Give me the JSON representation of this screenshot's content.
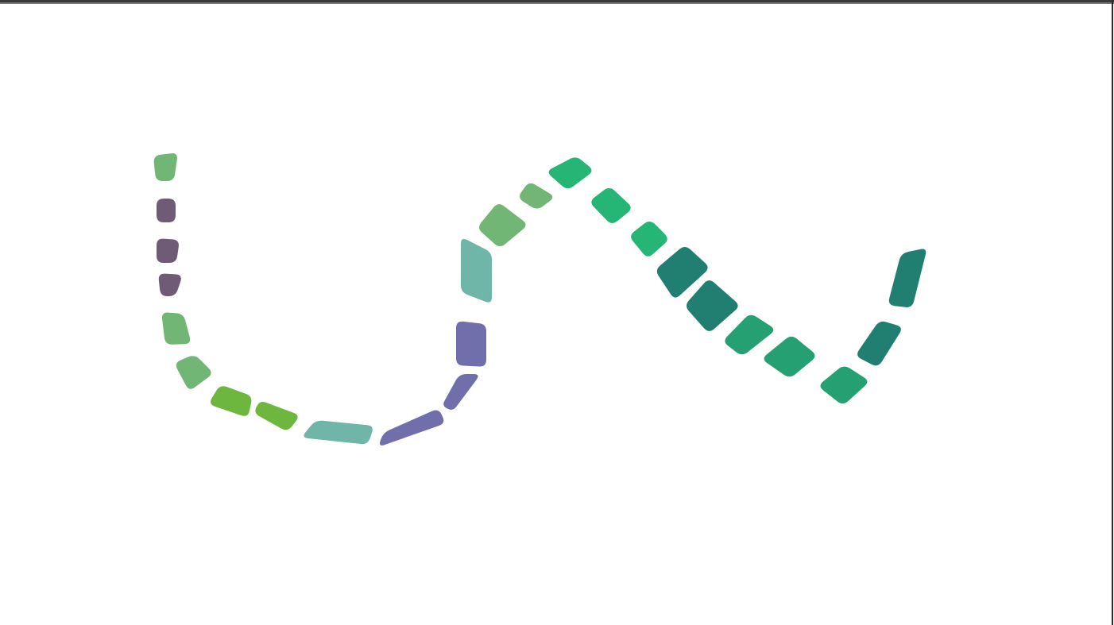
{
  "artwork": {
    "colors": {
      "sage": "#71b674",
      "plum": "#705b76",
      "lime": "#6eb73f",
      "teal_light": "#6fb6a8",
      "violet": "#716fab",
      "emerald": "#25b574",
      "teal_dark": "#217f72",
      "jade": "#25a073"
    },
    "segment_colors": [
      "sage",
      "plum",
      "plum",
      "plum",
      "sage",
      "sage",
      "lime",
      "lime",
      "teal_light",
      "violet",
      "violet",
      "violet",
      "teal_light",
      "sage",
      "sage",
      "emerald",
      "emerald",
      "emerald",
      "teal_dark",
      "teal_dark",
      "jade",
      "jade",
      "jade",
      "teal_dark",
      "teal_dark"
    ]
  }
}
